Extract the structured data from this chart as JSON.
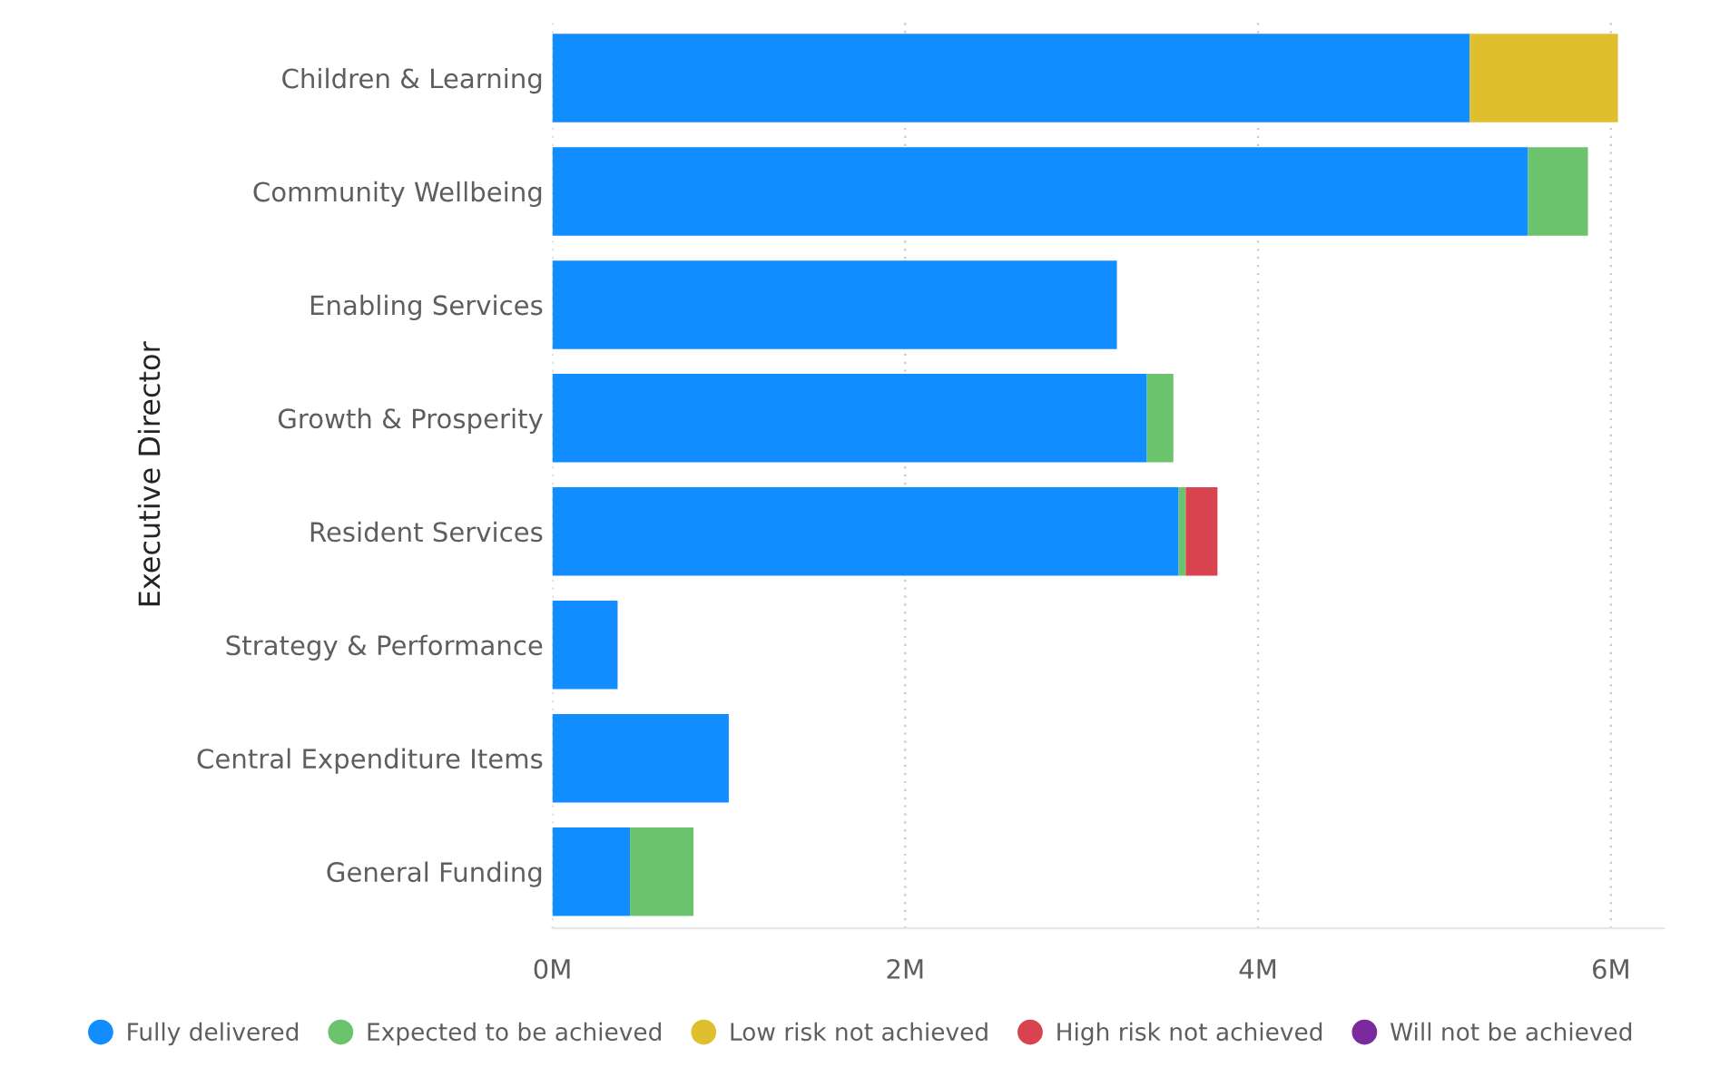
{
  "chart_data": {
    "type": "bar",
    "orientation": "horizontal",
    "stacked": true,
    "ylabel": "Executive Director",
    "categories": [
      "Children & Learning",
      "Community Wellbeing",
      "Enabling Services",
      "Growth & Prosperity",
      "Resident Services",
      "Strategy & Performance",
      "Central Expenditure Items",
      "General Funding"
    ],
    "series": [
      {
        "name": "Fully delivered",
        "color": "#118dff",
        "values": [
          5.2,
          5.53,
          3.2,
          3.37,
          3.55,
          0.37,
          1.0,
          0.44
        ]
      },
      {
        "name": "Expected to be achieved",
        "color": "#6bc46d",
        "values": [
          null,
          0.34,
          null,
          0.15,
          0.04,
          null,
          null,
          0.36
        ]
      },
      {
        "name": "Low risk not achieved",
        "color": "#e0bf2e",
        "values": [
          0.84,
          null,
          null,
          null,
          null,
          null,
          null,
          null
        ]
      },
      {
        "name": "High risk not achieved",
        "color": "#d9434f",
        "values": [
          null,
          null,
          null,
          null,
          0.18,
          null,
          null,
          null
        ]
      },
      {
        "name": "Will not be achieved",
        "color": "#7a2a9c",
        "values": [
          null,
          null,
          null,
          null,
          null,
          null,
          null,
          null
        ]
      }
    ],
    "xlim": [
      0,
      6.3
    ],
    "xticks": [
      {
        "value": 0,
        "label": "0M"
      },
      {
        "value": 2,
        "label": "2M"
      },
      {
        "value": 4,
        "label": "4M"
      },
      {
        "value": 6,
        "label": "6M"
      }
    ],
    "grid": "x",
    "legend": "bottom"
  }
}
